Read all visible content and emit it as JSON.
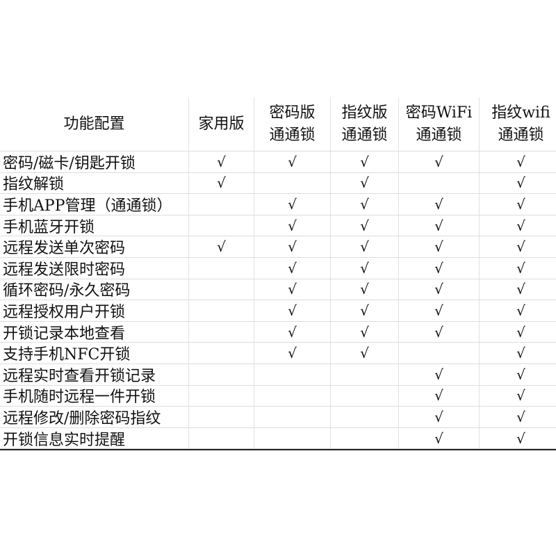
{
  "table": {
    "headers": [
      [
        "功能配置"
      ],
      [
        "家用版"
      ],
      [
        "密码版",
        "通通锁"
      ],
      [
        "指纹版",
        "通通锁"
      ],
      [
        "密码WiFi",
        "通通锁"
      ],
      [
        "指纹wifi",
        "通通锁"
      ]
    ],
    "check_mark": "√",
    "rows": [
      {
        "feature": "密码/磁卡/钥匙开锁",
        "support": [
          1,
          1,
          1,
          1,
          1
        ]
      },
      {
        "feature": "指纹解锁",
        "support": [
          1,
          0,
          1,
          0,
          1
        ]
      },
      {
        "feature": "手机APP管理（通通锁）",
        "support": [
          0,
          1,
          1,
          1,
          1
        ]
      },
      {
        "feature": "手机蓝牙开锁",
        "support": [
          0,
          1,
          1,
          1,
          1
        ]
      },
      {
        "feature": "远程发送单次密码",
        "support": [
          1,
          1,
          1,
          1,
          1
        ]
      },
      {
        "feature": "远程发送限时密码",
        "support": [
          0,
          1,
          1,
          1,
          1
        ]
      },
      {
        "feature": "循环密码/永久密码",
        "support": [
          0,
          1,
          1,
          1,
          1
        ]
      },
      {
        "feature": "远程授权用户开锁",
        "support": [
          0,
          1,
          1,
          1,
          1
        ]
      },
      {
        "feature": "开锁记录本地查看",
        "support": [
          0,
          1,
          1,
          1,
          1
        ]
      },
      {
        "feature": "支持手机NFC开锁",
        "support": [
          0,
          1,
          1,
          0,
          1
        ]
      },
      {
        "feature": "远程实时查看开锁记录",
        "support": [
          0,
          0,
          0,
          1,
          1
        ]
      },
      {
        "feature": "手机随时远程一件开锁",
        "support": [
          0,
          0,
          0,
          1,
          1
        ]
      },
      {
        "feature": "远程修改/删除密码指纹",
        "support": [
          0,
          0,
          0,
          1,
          1
        ]
      },
      {
        "feature": "开锁信息实时提醒",
        "support": [
          0,
          0,
          0,
          1,
          1
        ]
      }
    ]
  }
}
